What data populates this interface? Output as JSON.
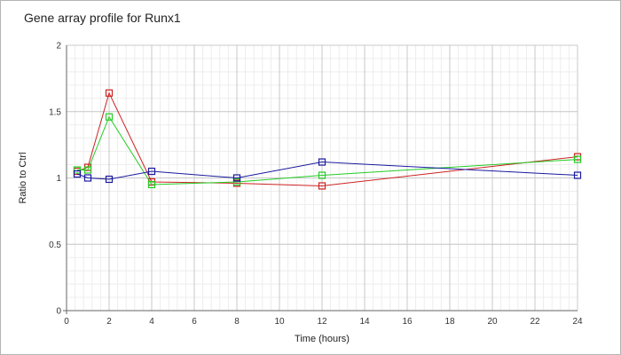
{
  "chart_data": {
    "type": "line",
    "title": "Gene array profile for Runx1",
    "xlabel": "Time (hours)",
    "ylabel": "Ratio to Ctrl",
    "xlim": [
      0,
      24
    ],
    "ylim": [
      0,
      2
    ],
    "xticks": [
      0,
      2,
      4,
      6,
      8,
      10,
      12,
      14,
      16,
      18,
      20,
      22,
      24
    ],
    "yticks": [
      0,
      0.5,
      1,
      1.5,
      2
    ],
    "ytick_labels": [
      "0",
      "0.5",
      "1",
      "1.5",
      "2"
    ],
    "grid": true,
    "minor_grid": true,
    "marker": "square",
    "series": [
      {
        "color": "#cc2222",
        "x": [
          0.5,
          1,
          2,
          4,
          8,
          12,
          24
        ],
        "y": [
          1.05,
          1.08,
          1.64,
          0.97,
          0.96,
          0.94,
          1.16
        ]
      },
      {
        "color": "#22cc22",
        "x": [
          0.5,
          1,
          2,
          4,
          8,
          12,
          24
        ],
        "y": [
          1.06,
          1.06,
          1.46,
          0.95,
          0.97,
          1.02,
          1.14
        ]
      },
      {
        "color": "#1a1aa0",
        "x": [
          0.5,
          1,
          2,
          4,
          8,
          12,
          24
        ],
        "y": [
          1.03,
          1.0,
          0.99,
          1.05,
          1.0,
          1.12,
          1.02
        ]
      }
    ]
  }
}
